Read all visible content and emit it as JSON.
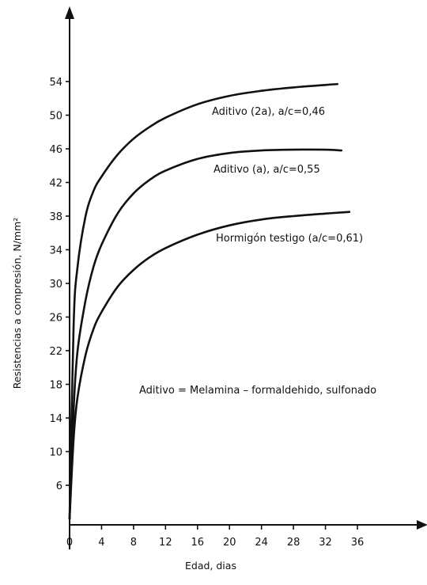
{
  "chart_data": {
    "type": "line",
    "xlabel": "Edad, dias",
    "ylabel": "Resistencias a compresión, N/mm²",
    "xlim": [
      0,
      36
    ],
    "ylim": [
      6,
      54
    ],
    "x_ticks": [
      "0",
      "4",
      "8",
      "12",
      "16",
      "20",
      "24",
      "28",
      "32",
      "36"
    ],
    "y_ticks": [
      "54",
      "50",
      "46",
      "42",
      "38",
      "34",
      "30",
      "26",
      "22",
      "18",
      "14",
      "10",
      "6"
    ],
    "grid": false,
    "series": [
      {
        "name": "Aditivo (2a), a/c=0,46",
        "x": [
          0,
          0.5,
          1,
          2,
          3,
          4,
          6,
          8,
          10,
          12,
          16,
          20,
          24,
          28,
          32,
          33.5
        ],
        "y": [
          2,
          25,
          32,
          38,
          41,
          42.7,
          45.3,
          47.2,
          48.6,
          49.7,
          51.3,
          52.3,
          52.9,
          53.3,
          53.6,
          53.7
        ]
      },
      {
        "name": "Aditivo (a), a/c=0,55",
        "x": [
          0,
          0.5,
          1,
          2,
          3,
          4,
          6,
          8,
          10,
          12,
          16,
          20,
          24,
          28,
          32,
          34
        ],
        "y": [
          2,
          15,
          22,
          28,
          32,
          34.6,
          38.3,
          40.7,
          42.3,
          43.4,
          44.8,
          45.5,
          45.8,
          45.9,
          45.9,
          45.8
        ]
      },
      {
        "name": "Hormigón testigo (a/c=0,61)",
        "x": [
          0,
          0.5,
          1,
          2,
          3,
          4,
          6,
          8,
          10,
          12,
          16,
          20,
          24,
          28,
          32,
          35
        ],
        "y": [
          2,
          11.5,
          16.5,
          21.5,
          24.6,
          26.6,
          29.6,
          31.6,
          33.1,
          34.2,
          35.8,
          36.9,
          37.6,
          38,
          38.3,
          38.5
        ]
      }
    ],
    "annotations": [
      "Aditivo = Melamina – formaldehido, sulfonado"
    ]
  }
}
